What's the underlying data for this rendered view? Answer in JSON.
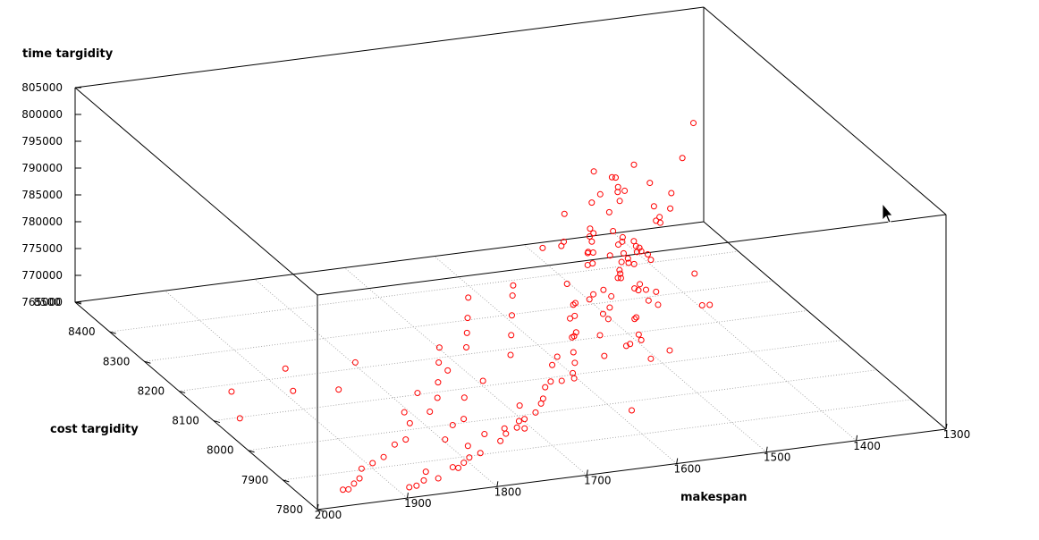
{
  "chart_data": {
    "type": "scatter",
    "title": "",
    "xlabel": "makespan",
    "ylabel": "cost targidity",
    "zlabel": "time targidity",
    "xlim": [
      1300,
      2000
    ],
    "ylim": [
      7800,
      8500
    ],
    "zlim": [
      765000,
      805000
    ],
    "x_ticks": [
      "1300",
      "1400",
      "1500",
      "1600",
      "1700",
      "1800",
      "1900",
      "2000"
    ],
    "y_ticks": [
      "7800",
      "7900",
      "8000",
      "8100",
      "8200",
      "8300",
      "8400",
      "8500"
    ],
    "z_ticks": [
      "765000",
      "770000",
      "775000",
      "780000",
      "785000",
      "790000",
      "795000",
      "800000",
      "805000"
    ],
    "grid": true,
    "marker": "open circle",
    "point_color": "#ff0000",
    "points": [
      [
        1550,
        8100,
        798000
      ],
      [
        1560,
        8080,
        802000
      ],
      [
        1540,
        8120,
        795000
      ],
      [
        1545,
        8060,
        790000
      ],
      [
        1530,
        8150,
        785000
      ],
      [
        1555,
        8000,
        792000
      ],
      [
        1520,
        8200,
        780000
      ],
      [
        1565,
        7950,
        788000
      ],
      [
        1535,
        8180,
        775000
      ],
      [
        1540,
        8090,
        770000
      ],
      [
        1550,
        8040,
        783000
      ],
      [
        1525,
        8250,
        778000
      ],
      [
        1560,
        8010,
        786000
      ],
      [
        1545,
        8140,
        772000
      ],
      [
        1530,
        8070,
        781000
      ],
      [
        1570,
        7980,
        794000
      ],
      [
        1520,
        8220,
        768000
      ],
      [
        1555,
        8110,
        776000
      ],
      [
        1540,
        8030,
        789000
      ],
      [
        1535,
        8190,
        766000
      ],
      [
        1548,
        8085,
        799000
      ],
      [
        1532,
        8160,
        787000
      ],
      [
        1562,
        8020,
        779000
      ],
      [
        1527,
        8210,
        791000
      ],
      [
        1543,
        8050,
        773000
      ],
      [
        1558,
        7990,
        784000
      ],
      [
        1538,
        8130,
        797000
      ],
      [
        1552,
        8070,
        771000
      ],
      [
        1523,
        8240,
        782000
      ],
      [
        1567,
        7960,
        775000
      ],
      [
        1600,
        8050,
        795000
      ],
      [
        1610,
        8100,
        790000
      ],
      [
        1620,
        8000,
        785000
      ],
      [
        1590,
        8150,
        792000
      ],
      [
        1630,
        8030,
        780000
      ],
      [
        1605,
        8120,
        788000
      ],
      [
        1615,
        7970,
        776000
      ],
      [
        1595,
        8200,
        783000
      ],
      [
        1625,
        8080,
        770000
      ],
      [
        1612,
        8010,
        793000
      ],
      [
        1480,
        8250,
        775000
      ],
      [
        1470,
        8300,
        770000
      ],
      [
        1490,
        8200,
        780000
      ],
      [
        1460,
        8350,
        785000
      ],
      [
        1475,
        8280,
        778000
      ],
      [
        1485,
        8220,
        772000
      ],
      [
        1465,
        8320,
        768000
      ],
      [
        1495,
        8180,
        782000
      ],
      [
        1470,
        8260,
        774000
      ],
      [
        1480,
        8300,
        766000
      ],
      [
        1500,
        8200,
        779000
      ],
      [
        1510,
        8150,
        771000
      ],
      [
        1490,
        8280,
        783000
      ],
      [
        1505,
        8100,
        776000
      ],
      [
        1515,
        8130,
        769000
      ],
      [
        1700,
        7980,
        765500
      ],
      [
        1720,
        7950,
        766000
      ],
      [
        1680,
        8000,
        765200
      ],
      [
        1750,
        7920,
        765800
      ],
      [
        1650,
        8050,
        766500
      ],
      [
        1780,
        7900,
        765300
      ],
      [
        1760,
        7940,
        766200
      ],
      [
        1690,
        8020,
        765600
      ],
      [
        1710,
        7970,
        765900
      ],
      [
        1740,
        7930,
        766400
      ],
      [
        1620,
        8080,
        765400
      ],
      [
        1640,
        8060,
        766800
      ],
      [
        1660,
        8030,
        765700
      ],
      [
        1670,
        8010,
        766100
      ],
      [
        1730,
        7960,
        765500
      ],
      [
        1800,
        7880,
        766000
      ],
      [
        1820,
        7860,
        765600
      ],
      [
        1790,
        7910,
        766300
      ],
      [
        1810,
        7870,
        765800
      ],
      [
        1830,
        7850,
        766500
      ],
      [
        1850,
        7840,
        765400
      ],
      [
        1870,
        7830,
        766000
      ],
      [
        1890,
        7820,
        765700
      ],
      [
        1860,
        7850,
        766300
      ],
      [
        1880,
        7825,
        765500
      ],
      [
        1600,
        8100,
        765300
      ],
      [
        1580,
        8150,
        766000
      ],
      [
        1560,
        8200,
        765800
      ],
      [
        1540,
        8250,
        766400
      ],
      [
        1520,
        8300,
        765600
      ],
      [
        1570,
        8180,
        766900
      ],
      [
        1550,
        8220,
        765200
      ],
      [
        1530,
        8280,
        766600
      ],
      [
        1590,
        8120,
        765900
      ],
      [
        1610,
        8070,
        766200
      ],
      [
        1700,
        8100,
        766000
      ],
      [
        1720,
        8150,
        765600
      ],
      [
        1680,
        8200,
        766300
      ],
      [
        1660,
        8250,
        765800
      ],
      [
        1740,
        8050,
        766500
      ],
      [
        1640,
        8300,
        765400
      ],
      [
        1620,
        8350,
        766000
      ],
      [
        1760,
        8000,
        765700
      ],
      [
        1780,
        7980,
        766100
      ],
      [
        1800,
        7950,
        765500
      ],
      [
        1820,
        8000,
        766200
      ],
      [
        1840,
        7960,
        765800
      ],
      [
        1860,
        7940,
        766400
      ],
      [
        1880,
        7920,
        765600
      ],
      [
        1900,
        7900,
        766000
      ],
      [
        1650,
        8150,
        767000
      ],
      [
        1630,
        8200,
        767500
      ],
      [
        1610,
        8250,
        768000
      ],
      [
        1590,
        8300,
        768500
      ],
      [
        1570,
        8350,
        767200
      ],
      [
        1750,
        8100,
        766800
      ],
      [
        1770,
        8050,
        767100
      ],
      [
        1790,
        8020,
        766600
      ],
      [
        1730,
        8150,
        767300
      ],
      [
        1710,
        8200,
        766900
      ],
      [
        1930,
        7860,
        766000
      ],
      [
        1950,
        7840,
        765500
      ],
      [
        1920,
        7880,
        766500
      ],
      [
        1940,
        7850,
        765800
      ],
      [
        1960,
        7830,
        766200
      ],
      [
        1450,
        8350,
        766000
      ],
      [
        1430,
        8400,
        765800
      ],
      [
        1410,
        8450,
        766400
      ],
      [
        1440,
        8380,
        765600
      ],
      [
        1420,
        8420,
        766100
      ],
      [
        1460,
        8420,
        767000
      ],
      [
        1440,
        8460,
        766500
      ],
      [
        1470,
        8380,
        767500
      ],
      [
        1500,
        8300,
        766800
      ],
      [
        1510,
        8350,
        766200
      ],
      [
        1580,
        7800,
        800000
      ],
      [
        1560,
        7830,
        792000
      ],
      [
        1540,
        7860,
        790000
      ],
      [
        1600,
        7820,
        785000
      ],
      [
        1700,
        7900,
        780000
      ],
      [
        1850,
        7900,
        778000
      ],
      [
        1900,
        7950,
        782000
      ],
      [
        1950,
        8000,
        775000
      ],
      [
        1650,
        7800,
        776000
      ],
      [
        1750,
        7850,
        772000
      ],
      [
        1980,
        8100,
        770000
      ],
      [
        1990,
        8050,
        768000
      ],
      [
        1920,
        8100,
        773000
      ],
      [
        1880,
        8050,
        771000
      ],
      [
        1830,
        7990,
        769000
      ],
      [
        1350,
        8400,
        790000
      ],
      [
        1370,
        8380,
        785000
      ],
      [
        1390,
        8360,
        780000
      ],
      [
        1410,
        8340,
        776000
      ],
      [
        1380,
        8420,
        772000
      ],
      [
        1530,
        8000,
        800000
      ],
      [
        1545,
        8020,
        804000
      ],
      [
        1555,
        8040,
        806500
      ],
      [
        1525,
        8060,
        797000
      ],
      [
        1515,
        8080,
        793000
      ],
      [
        1565,
        8130,
        800500
      ],
      [
        1575,
        8110,
        796000
      ],
      [
        1585,
        8090,
        791000
      ],
      [
        1595,
        8070,
        787000
      ],
      [
        1505,
        8170,
        784000
      ]
    ]
  }
}
